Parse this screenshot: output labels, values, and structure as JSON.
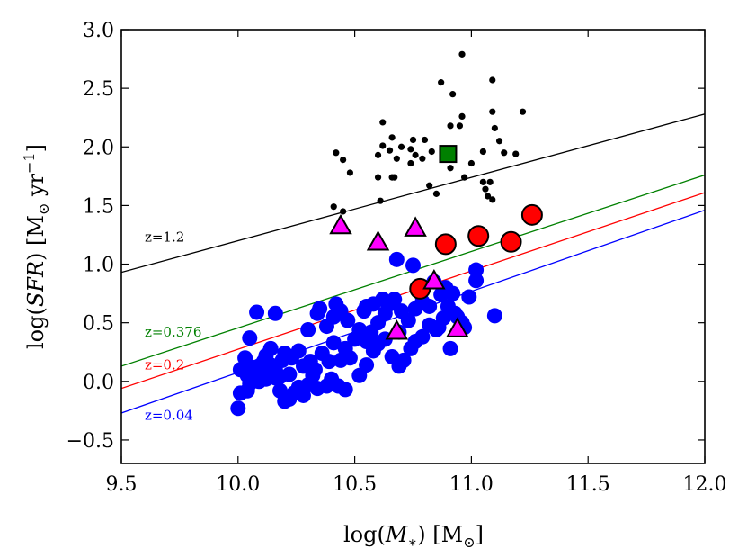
{
  "chart_data": {
    "type": "scatter",
    "title": "",
    "xlabel": "log(M_*) [M_⊙]",
    "ylabel": "log(SFR) [M_⊙ yr^-1]",
    "xlim": [
      9.5,
      12.0
    ],
    "ylim": [
      -0.7,
      3.0
    ],
    "x_ticks": [
      9.5,
      10.0,
      10.5,
      11.0,
      11.5,
      12.0
    ],
    "x_tick_labels": [
      "9.5",
      "10.0",
      "10.5",
      "11.0",
      "11.5",
      "12.0"
    ],
    "y_ticks": [
      -0.5,
      0.0,
      0.5,
      1.0,
      1.5,
      2.0,
      2.5,
      3.0
    ],
    "y_tick_labels": [
      "−0.5",
      "0.0",
      "0.5",
      "1.0",
      "1.5",
      "2.0",
      "2.5",
      "3.0"
    ],
    "grid": false,
    "lines": [
      {
        "label": "z=1.2",
        "color": "#000000",
        "x": [
          9.5,
          12.0
        ],
        "y": [
          0.93,
          2.28
        ],
        "label_at": [
          9.6,
          1.23
        ]
      },
      {
        "label": "z=0.376",
        "color": "#008000",
        "x": [
          9.5,
          12.0
        ],
        "y": [
          0.13,
          1.76
        ],
        "label_at": [
          9.6,
          0.42
        ]
      },
      {
        "label": "z=0.2",
        "color": "#ff0000",
        "x": [
          9.5,
          12.0
        ],
        "y": [
          -0.06,
          1.61
        ],
        "label_at": [
          9.6,
          0.14
        ]
      },
      {
        "label": "z=0.04",
        "color": "#0000ff",
        "x": [
          9.5,
          12.0
        ],
        "y": [
          -0.27,
          1.46
        ],
        "label_at": [
          9.6,
          -0.29
        ]
      }
    ],
    "series": [
      {
        "marker": "small-black-circle",
        "color": "#000000",
        "points": [
          [
            10.96,
            2.79
          ],
          [
            10.87,
            2.55
          ],
          [
            11.09,
            2.57
          ],
          [
            10.92,
            2.45
          ],
          [
            11.09,
            2.3
          ],
          [
            11.22,
            2.3
          ],
          [
            10.96,
            2.26
          ],
          [
            10.62,
            2.21
          ],
          [
            10.91,
            2.18
          ],
          [
            10.95,
            2.18
          ],
          [
            11.1,
            2.16
          ],
          [
            10.66,
            2.08
          ],
          [
            10.75,
            2.06
          ],
          [
            10.8,
            2.06
          ],
          [
            11.12,
            2.05
          ],
          [
            10.62,
            2.01
          ],
          [
            10.7,
            2.0
          ],
          [
            10.74,
            1.98
          ],
          [
            10.65,
            1.97
          ],
          [
            10.83,
            1.96
          ],
          [
            11.05,
            1.96
          ],
          [
            11.14,
            1.95
          ],
          [
            11.19,
            1.94
          ],
          [
            10.42,
            1.95
          ],
          [
            10.6,
            1.93
          ],
          [
            10.76,
            1.93
          ],
          [
            10.68,
            1.9
          ],
          [
            10.79,
            1.9
          ],
          [
            10.45,
            1.89
          ],
          [
            10.74,
            1.86
          ],
          [
            11.0,
            1.86
          ],
          [
            10.91,
            1.82
          ],
          [
            10.48,
            1.78
          ],
          [
            10.67,
            1.74
          ],
          [
            10.6,
            1.74
          ],
          [
            10.66,
            1.74
          ],
          [
            10.97,
            1.74
          ],
          [
            11.08,
            1.7
          ],
          [
            11.05,
            1.7
          ],
          [
            10.82,
            1.67
          ],
          [
            10.61,
            1.54
          ],
          [
            10.85,
            1.6
          ],
          [
            11.06,
            1.64
          ],
          [
            11.07,
            1.58
          ],
          [
            11.09,
            1.55
          ],
          [
            10.41,
            1.49
          ],
          [
            10.45,
            1.45
          ]
        ]
      },
      {
        "marker": "blue-circle",
        "color": "#0000ff",
        "points": [
          [
            10.0,
            -0.23
          ],
          [
            10.01,
            -0.1
          ],
          [
            10.04,
            -0.08
          ],
          [
            10.05,
            -0.02
          ],
          [
            10.09,
            0.0
          ],
          [
            10.11,
            0.05
          ],
          [
            10.16,
            0.03
          ],
          [
            10.18,
            -0.08
          ],
          [
            10.2,
            -0.17
          ],
          [
            10.22,
            -0.15
          ],
          [
            10.24,
            -0.1
          ],
          [
            10.26,
            -0.05
          ],
          [
            10.28,
            -0.12
          ],
          [
            10.3,
            -0.03
          ],
          [
            10.34,
            -0.06
          ],
          [
            10.38,
            -0.04
          ],
          [
            10.4,
            0.02
          ],
          [
            10.43,
            -0.04
          ],
          [
            10.46,
            -0.07
          ],
          [
            10.07,
            0.08
          ],
          [
            10.09,
            0.13
          ],
          [
            10.11,
            0.17
          ],
          [
            10.14,
            0.14
          ],
          [
            10.16,
            0.1
          ],
          [
            10.19,
            0.18
          ],
          [
            10.04,
            0.05
          ],
          [
            10.06,
            0.12
          ],
          [
            10.03,
            0.2
          ],
          [
            10.01,
            0.1
          ],
          [
            10.12,
            0.22
          ],
          [
            10.14,
            0.28
          ],
          [
            10.18,
            0.04
          ],
          [
            10.22,
            0.06
          ],
          [
            10.28,
            0.13
          ],
          [
            10.31,
            0.17
          ],
          [
            10.33,
            0.1
          ],
          [
            10.36,
            0.24
          ],
          [
            10.39,
            0.17
          ],
          [
            10.41,
            0.33
          ],
          [
            10.44,
            0.18
          ],
          [
            10.46,
            0.28
          ],
          [
            10.48,
            0.2
          ],
          [
            10.52,
            0.05
          ],
          [
            10.55,
            0.14
          ],
          [
            10.58,
            0.26
          ],
          [
            10.6,
            0.32
          ],
          [
            10.63,
            0.36
          ],
          [
            10.66,
            0.21
          ],
          [
            10.69,
            0.13
          ],
          [
            10.71,
            0.18
          ],
          [
            10.74,
            0.28
          ],
          [
            10.76,
            0.34
          ],
          [
            10.79,
            0.38
          ],
          [
            10.82,
            0.48
          ],
          [
            10.85,
            0.44
          ],
          [
            10.88,
            0.54
          ],
          [
            10.9,
            0.64
          ],
          [
            10.93,
            0.58
          ],
          [
            10.96,
            0.5
          ],
          [
            10.99,
            0.72
          ],
          [
            11.02,
            0.86
          ],
          [
            11.02,
            0.95
          ],
          [
            10.82,
            0.64
          ],
          [
            10.79,
            0.68
          ],
          [
            10.76,
            0.62
          ],
          [
            10.73,
            0.52
          ],
          [
            10.7,
            0.6
          ],
          [
            10.67,
            0.7
          ],
          [
            10.63,
            0.58
          ],
          [
            10.6,
            0.5
          ],
          [
            10.57,
            0.42
          ],
          [
            10.55,
            0.34
          ],
          [
            10.52,
            0.44
          ],
          [
            10.5,
            0.36
          ],
          [
            10.47,
            0.52
          ],
          [
            10.44,
            0.6
          ],
          [
            10.41,
            0.55
          ],
          [
            10.38,
            0.47
          ],
          [
            10.35,
            0.62
          ],
          [
            10.42,
            0.66
          ],
          [
            10.68,
            1.04
          ],
          [
            10.75,
            0.99
          ],
          [
            10.58,
            0.66
          ],
          [
            10.62,
            0.7
          ],
          [
            10.65,
            0.66
          ],
          [
            10.55,
            0.64
          ],
          [
            10.26,
            0.26
          ],
          [
            10.23,
            0.2
          ],
          [
            10.16,
            0.58
          ],
          [
            10.08,
            0.59
          ],
          [
            10.05,
            0.37
          ],
          [
            10.3,
            0.44
          ],
          [
            10.34,
            0.58
          ],
          [
            10.87,
            0.74
          ],
          [
            10.92,
            0.75
          ],
          [
            10.89,
            0.8
          ],
          [
            10.94,
            0.55
          ],
          [
            10.97,
            0.46
          ],
          [
            11.1,
            0.56
          ],
          [
            10.91,
            0.28
          ],
          [
            10.84,
            0.85
          ],
          [
            10.86,
            0.46
          ],
          [
            10.54,
            0.6
          ],
          [
            10.69,
            0.42
          ],
          [
            10.2,
            0.24
          ],
          [
            10.32,
            0.05
          ],
          [
            10.12,
            0.02
          ]
        ]
      },
      {
        "marker": "red-circle",
        "color": "#ff0000",
        "points": [
          [
            10.78,
            0.79
          ],
          [
            10.89,
            1.17
          ],
          [
            11.03,
            1.24
          ],
          [
            11.17,
            1.19
          ],
          [
            11.26,
            1.42
          ]
        ]
      },
      {
        "marker": "magenta-triangle",
        "color": "#ff00ff",
        "points": [
          [
            10.44,
            1.32
          ],
          [
            10.6,
            1.18
          ],
          [
            10.76,
            1.3
          ],
          [
            10.84,
            0.85
          ],
          [
            10.68,
            0.42
          ],
          [
            10.94,
            0.44
          ]
        ]
      },
      {
        "marker": "green-square",
        "color": "#008000",
        "points": [
          [
            10.9,
            1.94
          ]
        ]
      }
    ]
  }
}
